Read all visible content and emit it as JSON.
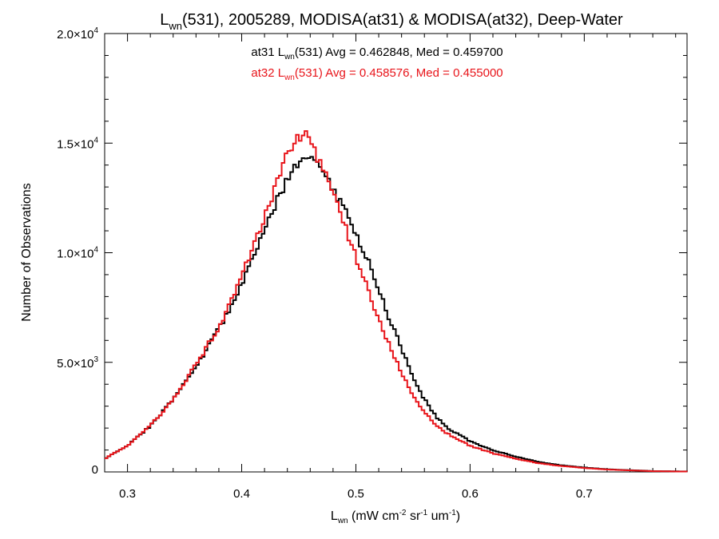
{
  "chart_data": {
    "type": "line",
    "title": {
      "main": "L",
      "sub": "wn",
      "rest": "(531), 2005289, MODISA(at31) & MODISA(at32), Deep-Water"
    },
    "xlabel": {
      "main": "L",
      "sub": "wn",
      "units_a": " (mW cm",
      "units_b": " sr",
      "units_c": " um",
      "exp": "-2",
      "exp2": "-1",
      "exp3": "-1",
      "close": ")"
    },
    "ylabel": "Number of Observations",
    "xlim": [
      0.28,
      0.79
    ],
    "ylim": [
      0,
      20000
    ],
    "x_ticks": [
      {
        "value": 0.3,
        "label": "0.3"
      },
      {
        "value": 0.4,
        "label": "0.4"
      },
      {
        "value": 0.5,
        "label": "0.5"
      },
      {
        "value": 0.6,
        "label": "0.6"
      },
      {
        "value": 0.7,
        "label": "0.7"
      }
    ],
    "y_ticks": [
      {
        "value": 0,
        "mantissa": "0",
        "exp": ""
      },
      {
        "value": 5000,
        "mantissa": "5.0×10",
        "exp": "3"
      },
      {
        "value": 10000,
        "mantissa": "1.0×10",
        "exp": "4"
      },
      {
        "value": 15000,
        "mantissa": "1.5×10",
        "exp": "4"
      },
      {
        "value": 20000,
        "mantissa": "2.0×10",
        "exp": "4"
      }
    ],
    "grid": false,
    "annotations": [
      {
        "prefix": "at31 L",
        "sub": "wn",
        "suffix": "(531) Avg = 0.462848, Med = 0.459700",
        "color": "#000000"
      },
      {
        "prefix": "at32 L",
        "sub": "wn",
        "suffix": "(531) Avg = 0.458576, Med = 0.455000",
        "color": "#e8141a"
      }
    ],
    "series": [
      {
        "color": "#000000",
        "style": "step",
        "points": [
          [
            0.28,
            600
          ],
          [
            0.3,
            1200
          ],
          [
            0.32,
            2100
          ],
          [
            0.34,
            3300
          ],
          [
            0.36,
            4800
          ],
          [
            0.38,
            6500
          ],
          [
            0.39,
            7500
          ],
          [
            0.4,
            8600
          ],
          [
            0.41,
            9800
          ],
          [
            0.42,
            11100
          ],
          [
            0.43,
            12300
          ],
          [
            0.44,
            13400
          ],
          [
            0.45,
            14000
          ],
          [
            0.46,
            14500
          ],
          [
            0.465,
            14400
          ],
          [
            0.47,
            13700
          ],
          [
            0.48,
            12900
          ],
          [
            0.49,
            12000
          ],
          [
            0.5,
            10900
          ],
          [
            0.51,
            9700
          ],
          [
            0.52,
            8300
          ],
          [
            0.53,
            6900
          ],
          [
            0.54,
            5600
          ],
          [
            0.55,
            4300
          ],
          [
            0.56,
            3300
          ],
          [
            0.57,
            2550
          ],
          [
            0.58,
            2000
          ],
          [
            0.6,
            1400
          ],
          [
            0.62,
            1000
          ],
          [
            0.64,
            700
          ],
          [
            0.66,
            450
          ],
          [
            0.68,
            300
          ],
          [
            0.7,
            200
          ],
          [
            0.72,
            120
          ],
          [
            0.74,
            80
          ],
          [
            0.76,
            40
          ],
          [
            0.79,
            20
          ]
        ]
      },
      {
        "color": "#e8141a",
        "style": "step",
        "points": [
          [
            0.28,
            600
          ],
          [
            0.3,
            1200
          ],
          [
            0.32,
            2100
          ],
          [
            0.34,
            3300
          ],
          [
            0.36,
            4900
          ],
          [
            0.38,
            6600
          ],
          [
            0.39,
            7700
          ],
          [
            0.4,
            8900
          ],
          [
            0.41,
            10200
          ],
          [
            0.42,
            11700
          ],
          [
            0.43,
            13100
          ],
          [
            0.44,
            14500
          ],
          [
            0.45,
            15300
          ],
          [
            0.455,
            15500
          ],
          [
            0.46,
            15000
          ],
          [
            0.47,
            14000
          ],
          [
            0.48,
            12800
          ],
          [
            0.49,
            11300
          ],
          [
            0.5,
            9800
          ],
          [
            0.51,
            8400
          ],
          [
            0.52,
            7000
          ],
          [
            0.53,
            5700
          ],
          [
            0.54,
            4500
          ],
          [
            0.55,
            3500
          ],
          [
            0.56,
            2700
          ],
          [
            0.57,
            2150
          ],
          [
            0.58,
            1750
          ],
          [
            0.6,
            1200
          ],
          [
            0.62,
            850
          ],
          [
            0.64,
            600
          ],
          [
            0.66,
            400
          ],
          [
            0.68,
            270
          ],
          [
            0.7,
            180
          ],
          [
            0.72,
            110
          ],
          [
            0.74,
            70
          ],
          [
            0.76,
            35
          ],
          [
            0.79,
            15
          ]
        ]
      }
    ]
  }
}
